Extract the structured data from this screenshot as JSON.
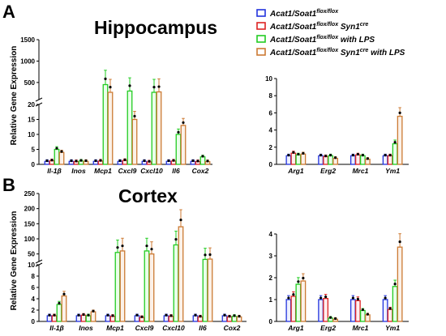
{
  "panels": [
    {
      "label": "A",
      "title": "Hippocampus"
    },
    {
      "label": "B",
      "title": "Cortex"
    }
  ],
  "ylabel": "Relative Gene Expression",
  "legend": [
    {
      "base": "Acat1/Soat1",
      "sup": "flox/flox",
      "suffix": "",
      "sup2": "",
      "tail": "",
      "color": "#2233dd"
    },
    {
      "base": "Acat1/Soat1",
      "sup": "flox/flox",
      "suffix": " Syn1",
      "sup2": "cre",
      "tail": "",
      "color": "#dd2222"
    },
    {
      "base": "Acat1/Soat1",
      "sup": "flox/flox",
      "suffix": " with LPS",
      "sup2": "",
      "tail": "",
      "color": "#22cc22"
    },
    {
      "base": "Acat1/Soat1",
      "sup": "flox/flox",
      "suffix": " Syn1",
      "sup2": "cre",
      "tail": " with LPS",
      "color": "#cc7a33"
    }
  ],
  "chart_data": [
    {
      "type": "bar",
      "panel": "A",
      "title": "Hippocampus",
      "ylabel": "Relative Gene Expression",
      "y_axis": "broken",
      "lower_ylim": [
        0,
        20
      ],
      "upper_ylim": [
        0,
        1500
      ],
      "lower_ticks": [
        "0",
        "5",
        "10",
        "15",
        "20"
      ],
      "upper_ticks": [
        "500",
        "1000",
        "1500"
      ],
      "categories": [
        "Il-1β",
        "Inos",
        "Mcp1",
        "Cxcl9",
        "Cxcl10",
        "Il6",
        "Cox2"
      ],
      "series": [
        {
          "name": "Acat1/Soat1 flox/flox",
          "values": [
            1,
            1,
            1,
            1,
            1,
            1,
            1
          ]
        },
        {
          "name": "Acat1/Soat1 flox/flox Syn1cre",
          "values": [
            1.2,
            0.9,
            1.1,
            1.3,
            0.8,
            1.1,
            0.9
          ]
        },
        {
          "name": "Acat1/Soat1 flox/flox with LPS",
          "values": [
            5,
            1.1,
            450,
            300,
            270,
            10,
            2.5
          ]
        },
        {
          "name": "Acat1/Soat1 flox/flox Syn1cre with LPS",
          "values": [
            4,
            1.0,
            270,
            15,
            280,
            13,
            0.9
          ]
        }
      ]
    },
    {
      "type": "bar",
      "panel": "A",
      "ylim": [
        0,
        10
      ],
      "yticks": [
        "0",
        "2",
        "4",
        "6",
        "8",
        "10"
      ],
      "categories": [
        "Arg1",
        "Erg2",
        "Mrc1",
        "Ym1"
      ],
      "series": [
        {
          "name": "Acat1/Soat1 flox/flox",
          "values": [
            1,
            1,
            1,
            1
          ]
        },
        {
          "name": "Acat1/Soat1 flox/flox Syn1cre",
          "values": [
            1.3,
            0.9,
            1.1,
            1.0
          ]
        },
        {
          "name": "Acat1/Soat1 flox/flox with LPS",
          "values": [
            1.1,
            1.0,
            1.0,
            2.4
          ]
        },
        {
          "name": "Acat1/Soat1 flox/flox Syn1cre with LPS",
          "values": [
            1.2,
            0.7,
            0.6,
            5.6
          ]
        }
      ]
    },
    {
      "type": "bar",
      "panel": "B",
      "title": "Cortex",
      "ylabel": "Relative Gene Expression",
      "y_axis": "broken",
      "lower_ylim": [
        0,
        10
      ],
      "upper_ylim": [
        0,
        250
      ],
      "lower_ticks": [
        "0",
        "2",
        "4",
        "6",
        "8",
        "10"
      ],
      "upper_ticks": [
        "50",
        "100",
        "150",
        "200",
        "250"
      ],
      "categories": [
        "Il-1β",
        "Inos",
        "Mcp1",
        "Cxcl9",
        "Cxcl10",
        "Il6",
        "Cox2"
      ],
      "series": [
        {
          "name": "Acat1/Soat1 flox/flox",
          "values": [
            1,
            1,
            1,
            1,
            1,
            1,
            1
          ]
        },
        {
          "name": "Acat1/Soat1 flox/flox Syn1cre",
          "values": [
            1,
            1.1,
            0.9,
            0.7,
            0.9,
            0.8,
            0.8
          ]
        },
        {
          "name": "Acat1/Soat1 flox/flox with LPS",
          "values": [
            3,
            1.0,
            55,
            60,
            80,
            32,
            0.9
          ]
        },
        {
          "name": "Acat1/Soat1 flox/flox Syn1cre with LPS",
          "values": [
            4.5,
            1.7,
            60,
            50,
            140,
            33,
            0.8
          ]
        }
      ]
    },
    {
      "type": "bar",
      "panel": "B",
      "ylim": [
        0,
        4
      ],
      "yticks": [
        "0",
        "1",
        "2",
        "3",
        "4"
      ],
      "categories": [
        "Arg1",
        "Erg2",
        "Mrc1",
        "Ym1"
      ],
      "series": [
        {
          "name": "Acat1/Soat1 flox/flox",
          "values": [
            1,
            1,
            1,
            1
          ]
        },
        {
          "name": "Acat1/Soat1 flox/flox Syn1cre",
          "values": [
            1.15,
            1.05,
            0.95,
            0.55
          ]
        },
        {
          "name": "Acat1/Soat1 flox/flox with LPS",
          "values": [
            1.7,
            0.15,
            0.5,
            1.6
          ]
        },
        {
          "name": "Acat1/Soat1 flox/flox Syn1cre with LPS",
          "values": [
            1.85,
            0.1,
            0.3,
            3.4
          ]
        }
      ]
    }
  ]
}
